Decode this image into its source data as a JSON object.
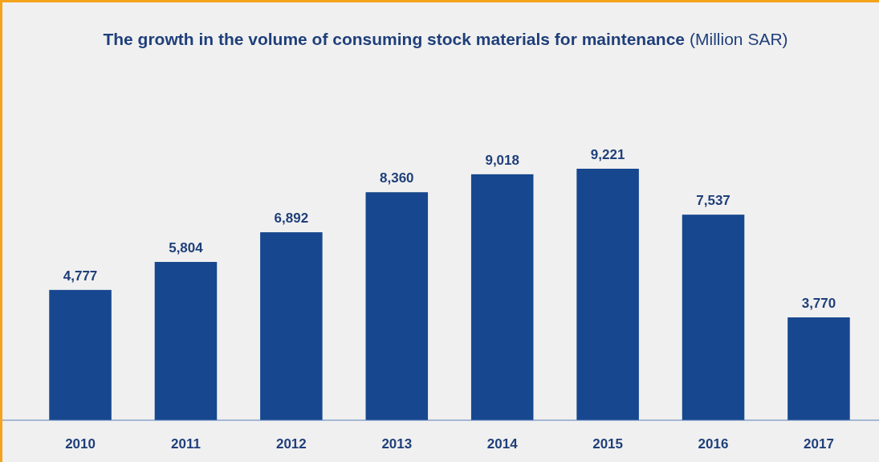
{
  "chart_data": {
    "type": "bar",
    "title": "The growth in the volume of consuming stock materials for maintenance",
    "subtitle": "(Million SAR)",
    "categories": [
      "2010",
      "2011",
      "2012",
      "2013",
      "2014",
      "2015",
      "2016",
      "2017"
    ],
    "values": [
      4777,
      5804,
      6892,
      8360,
      9018,
      9221,
      7537,
      3770
    ],
    "value_labels": [
      "4,777",
      "5,804",
      "6,892",
      "8,360",
      "9,018",
      "9,221",
      "7,537",
      "3,770"
    ],
    "color": "#17478e"
  }
}
